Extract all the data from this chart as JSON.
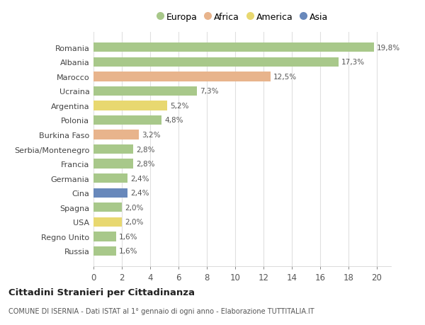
{
  "countries": [
    "Russia",
    "Regno Unito",
    "USA",
    "Spagna",
    "Cina",
    "Germania",
    "Francia",
    "Serbia/Montenegro",
    "Burkina Faso",
    "Polonia",
    "Argentina",
    "Ucraina",
    "Marocco",
    "Albania",
    "Romania"
  ],
  "values": [
    1.6,
    1.6,
    2.0,
    2.0,
    2.4,
    2.4,
    2.8,
    2.8,
    3.2,
    4.8,
    5.2,
    7.3,
    12.5,
    17.3,
    19.8
  ],
  "labels": [
    "1,6%",
    "1,6%",
    "2,0%",
    "2,0%",
    "2,4%",
    "2,4%",
    "2,8%",
    "2,8%",
    "3,2%",
    "4,8%",
    "5,2%",
    "7,3%",
    "12,5%",
    "17,3%",
    "19,8%"
  ],
  "continents": [
    "Europa",
    "Europa",
    "America",
    "Europa",
    "Asia",
    "Europa",
    "Europa",
    "Europa",
    "Africa",
    "Europa",
    "America",
    "Europa",
    "Africa",
    "Europa",
    "Europa"
  ],
  "continent_colors": {
    "Europa": "#a8c88a",
    "Africa": "#e8b48c",
    "America": "#e8d870",
    "Asia": "#6888bb"
  },
  "legend_items": [
    "Europa",
    "Africa",
    "America",
    "Asia"
  ],
  "legend_colors": [
    "#a8c88a",
    "#e8b48c",
    "#e8d870",
    "#6888bb"
  ],
  "title": "Cittadini Stranieri per Cittadinanza",
  "subtitle": "COMUNE DI ISERNIA - Dati ISTAT al 1° gennaio di ogni anno - Elaborazione TUTTITALIA.IT",
  "xlim": [
    0,
    21
  ],
  "xticks": [
    0,
    2,
    4,
    6,
    8,
    10,
    12,
    14,
    16,
    18,
    20
  ],
  "bg_color": "#ffffff",
  "grid_color": "#e0e0e0",
  "bar_height": 0.65
}
